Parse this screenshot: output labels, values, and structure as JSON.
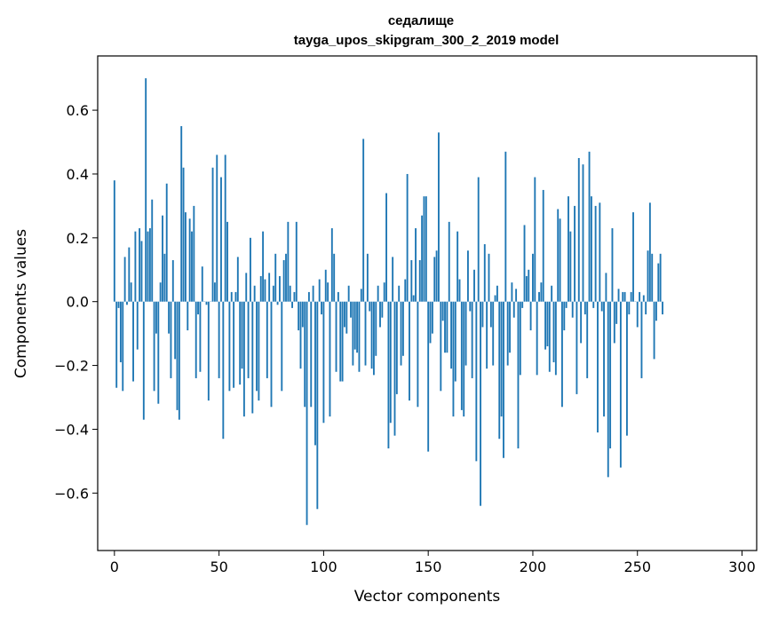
{
  "chart_data": {
    "type": "bar",
    "title": "седалище",
    "subtitle": "tayga_upos_skipgram_300_2_2019 model",
    "xlabel": "Vector components",
    "ylabel": "Components values",
    "xlim": [
      -8,
      307
    ],
    "ylim": [
      -0.78,
      0.77
    ],
    "xticks": [
      0,
      50,
      100,
      150,
      200,
      250,
      300
    ],
    "xtick_labels": [
      "0",
      "50",
      "100",
      "150",
      "200",
      "250",
      "300"
    ],
    "yticks": [
      -0.6,
      -0.4,
      -0.2,
      0.0,
      0.2,
      0.4,
      0.6
    ],
    "ytick_labels": [
      "−0.6",
      "−0.4",
      "−0.2",
      "0.0",
      "0.2",
      "0.4",
      "0.6"
    ],
    "color": "#1f77b4",
    "values": [
      0.38,
      -0.27,
      -0.02,
      -0.19,
      -0.28,
      0.14,
      -0.01,
      0.17,
      0.06,
      -0.25,
      0.22,
      -0.15,
      0.23,
      0.19,
      -0.37,
      0.7,
      0.22,
      0.23,
      0.32,
      -0.28,
      -0.1,
      -0.32,
      0.06,
      0.27,
      0.15,
      0.37,
      -0.1,
      -0.24,
      0.13,
      -0.18,
      -0.34,
      -0.37,
      0.55,
      0.42,
      0.28,
      -0.09,
      0.26,
      0.22,
      0.3,
      -0.24,
      -0.04,
      -0.22,
      0.11,
      0.0,
      -0.01,
      -0.31,
      0.0,
      0.42,
      0.06,
      0.46,
      -0.24,
      0.39,
      -0.43,
      0.46,
      0.25,
      -0.28,
      0.03,
      -0.27,
      0.03,
      0.14,
      -0.26,
      -0.21,
      -0.36,
      0.09,
      -0.24,
      0.2,
      -0.35,
      0.05,
      -0.28,
      -0.31,
      0.08,
      0.22,
      0.07,
      -0.24,
      0.09,
      -0.33,
      0.05,
      0.15,
      -0.01,
      0.08,
      -0.28,
      0.13,
      0.15,
      0.25,
      0.05,
      -0.02,
      0.03,
      0.25,
      -0.09,
      -0.21,
      -0.08,
      -0.33,
      -0.7,
      0.03,
      -0.33,
      0.05,
      -0.45,
      -0.65,
      0.07,
      -0.04,
      -0.38,
      0.1,
      0.06,
      -0.36,
      0.23,
      0.15,
      -0.22,
      0.03,
      -0.25,
      -0.25,
      -0.08,
      -0.1,
      0.05,
      -0.05,
      -0.2,
      -0.15,
      -0.16,
      -0.22,
      0.04,
      0.51,
      -0.2,
      0.15,
      -0.03,
      -0.21,
      -0.23,
      -0.17,
      0.05,
      -0.08,
      -0.05,
      0.06,
      0.34,
      -0.46,
      -0.38,
      0.14,
      -0.42,
      -0.29,
      0.05,
      -0.2,
      -0.17,
      0.07,
      0.4,
      -0.31,
      0.13,
      0.02,
      0.23,
      -0.33,
      0.13,
      0.27,
      0.33,
      0.33,
      -0.47,
      -0.13,
      -0.1,
      0.14,
      0.16,
      0.53,
      -0.28,
      -0.06,
      -0.16,
      -0.16,
      0.25,
      -0.21,
      -0.36,
      -0.25,
      0.22,
      0.07,
      -0.34,
      -0.36,
      -0.2,
      0.16,
      -0.03,
      -0.24,
      0.1,
      -0.5,
      0.39,
      -0.64,
      -0.08,
      0.18,
      -0.21,
      0.15,
      -0.08,
      -0.2,
      0.02,
      0.05,
      -0.43,
      -0.36,
      -0.49,
      0.47,
      -0.2,
      -0.16,
      0.06,
      -0.05,
      0.04,
      -0.46,
      -0.23,
      -0.02,
      0.24,
      0.08,
      0.1,
      -0.09,
      0.15,
      0.39,
      -0.23,
      0.03,
      0.06,
      0.35,
      -0.15,
      -0.14,
      -0.22,
      0.05,
      -0.19,
      -0.23,
      0.29,
      0.26,
      -0.33,
      -0.09,
      -0.02,
      0.33,
      0.22,
      -0.05,
      0.3,
      -0.29,
      0.45,
      -0.13,
      0.43,
      -0.04,
      -0.24,
      0.47,
      0.33,
      -0.02,
      0.3,
      -0.41,
      0.31,
      -0.03,
      -0.36,
      0.09,
      -0.55,
      -0.46,
      0.23,
      -0.13,
      -0.07,
      0.04,
      -0.52,
      0.03,
      0.03,
      -0.42,
      -0.04,
      0.03,
      0.28,
      0.0,
      -0.08,
      0.03,
      -0.24,
      0.02,
      -0.04,
      0.16,
      0.31,
      0.15,
      -0.18,
      -0.06,
      0.12,
      0.15,
      -0.04
    ]
  }
}
